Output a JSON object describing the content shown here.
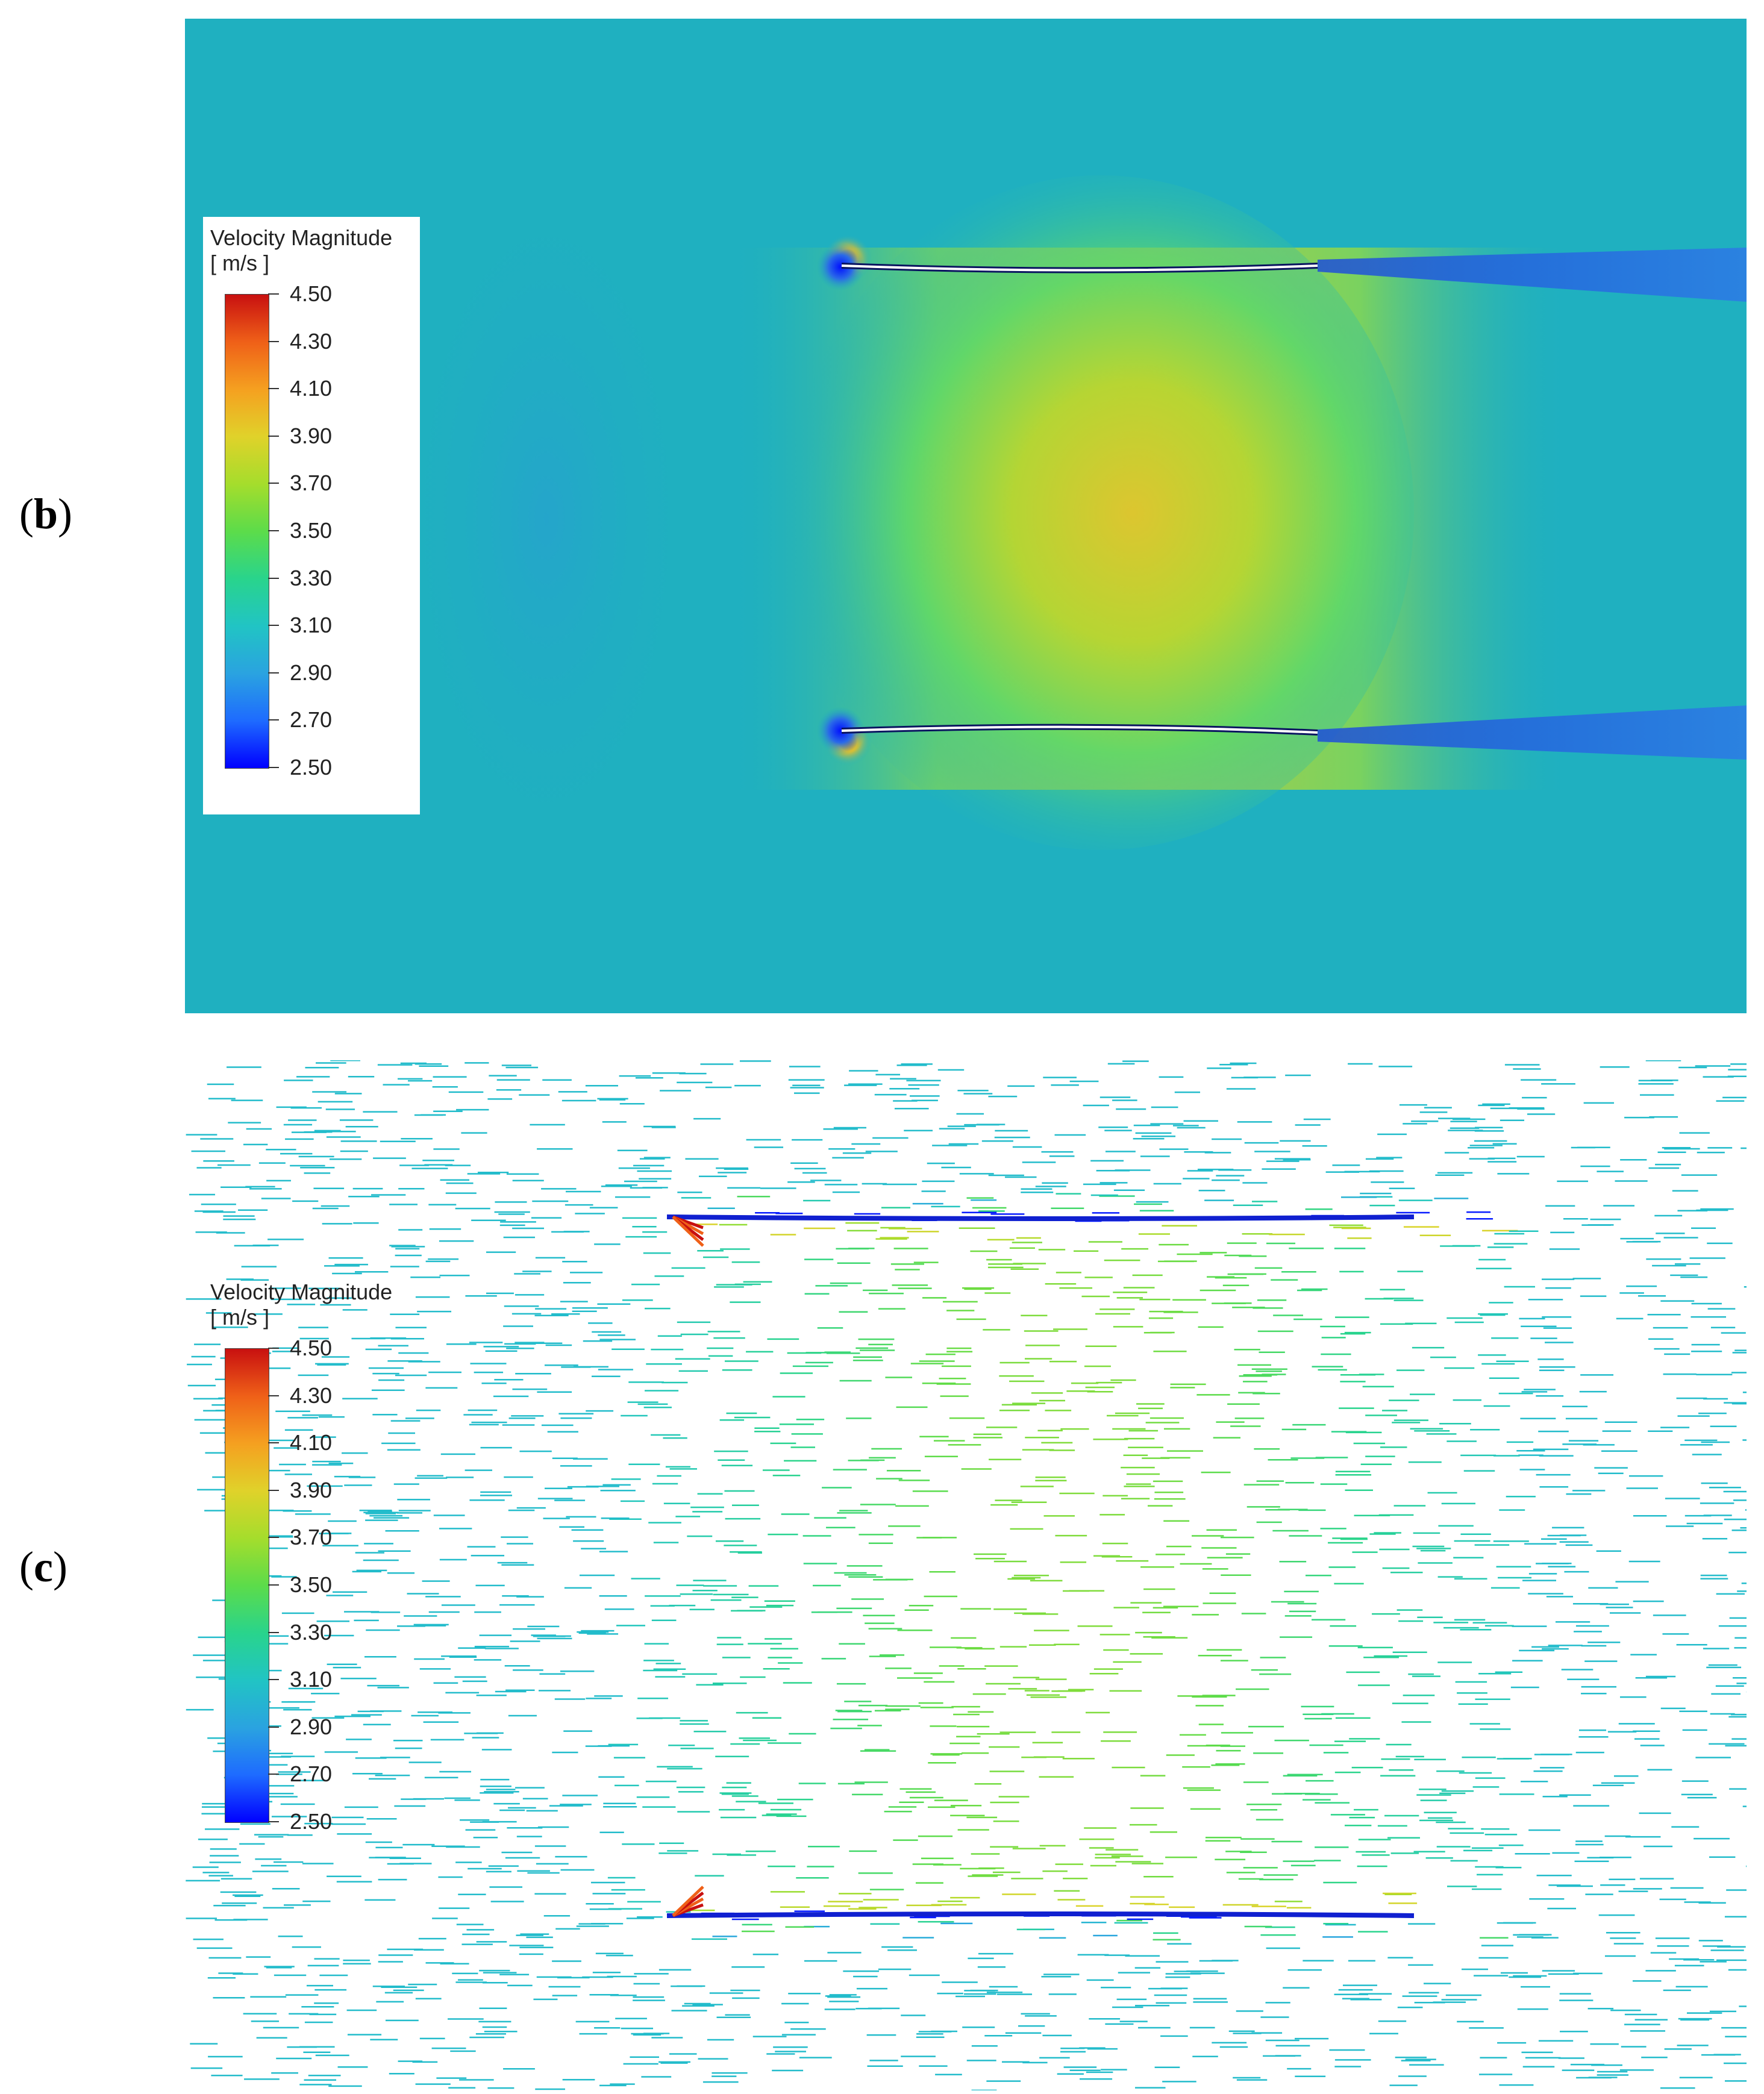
{
  "panels": [
    {
      "label": "b",
      "type": "contour"
    },
    {
      "label": "c",
      "type": "vector"
    }
  ],
  "legend": {
    "title": "Velocity Magnitude",
    "unit": "[ m/s ]",
    "values": [
      "4.50",
      "4.30",
      "4.10",
      "3.90",
      "3.70",
      "3.50",
      "3.30",
      "3.10",
      "2.90",
      "2.70",
      "2.50"
    ],
    "min": 2.5,
    "max": 4.5
  },
  "colors": {
    "background_field": "#1fb0c0",
    "high": "#c81010",
    "low": "#0000ff"
  }
}
